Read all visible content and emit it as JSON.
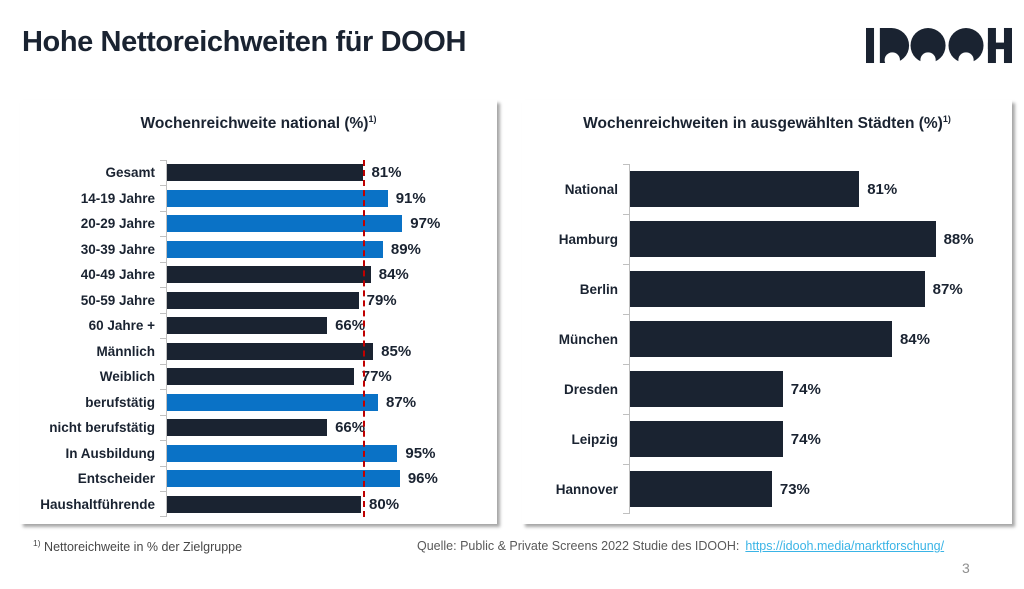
{
  "slide": {
    "title": "Hohe Nettoreichweiten für DOOH",
    "logo_text": "IDOOH",
    "page_number": "3",
    "footnote_marker": "1)",
    "footnote_text": "Nettoreichweite in % der Zielgruppe",
    "source_label": "Quelle: Public & Private Screens 2022 Studie des IDOOH:",
    "source_link": "https://idooh.media/marktforschung/"
  },
  "colors": {
    "navy": "#1a2331",
    "blue": "#0a72c6",
    "reference_red": "#c00000",
    "link_blue": "#3ab4e6",
    "axis_gray": "#c0c0c0"
  },
  "chart_data": [
    {
      "type": "bar",
      "orientation": "horizontal",
      "title": "Wochenreichweite national (%)",
      "title_superscript": "1)",
      "categories": [
        "Gesamt",
        "14-19 Jahre",
        "20-29 Jahre",
        "30-39 Jahre",
        "40-49 Jahre",
        "50-59 Jahre",
        "60 Jahre +",
        "Männlich",
        "Weiblich",
        "berufstätig",
        "nicht berufstätig",
        "In Ausbildung",
        "Entscheider",
        "Haushaltführende"
      ],
      "values": [
        81,
        91,
        97,
        89,
        84,
        79,
        66,
        85,
        77,
        87,
        66,
        95,
        96,
        80
      ],
      "bar_colors": [
        "#1a2331",
        "#0a72c6",
        "#0a72c6",
        "#0a72c6",
        "#1a2331",
        "#1a2331",
        "#1a2331",
        "#1a2331",
        "#1a2331",
        "#0a72c6",
        "#1a2331",
        "#0a72c6",
        "#0a72c6",
        "#1a2331"
      ],
      "value_suffix": "%",
      "xlim": [
        0,
        100
      ],
      "grid": false,
      "legend": false,
      "reference_line": {
        "value": 81,
        "color": "#c00000",
        "style": "dashed"
      }
    },
    {
      "type": "bar",
      "orientation": "horizontal",
      "title": "Wochenreichweiten in ausgewählten Städten (%)",
      "title_superscript": "1)",
      "categories": [
        "National",
        "Hamburg",
        "Berlin",
        "München",
        "Dresden",
        "Leipzig",
        "Hannover"
      ],
      "values": [
        81,
        88,
        87,
        84,
        74,
        74,
        73
      ],
      "bar_colors": [
        "#1a2331",
        "#1a2331",
        "#1a2331",
        "#1a2331",
        "#1a2331",
        "#1a2331",
        "#1a2331"
      ],
      "value_suffix": "%",
      "xlim": [
        60,
        95
      ],
      "grid": false,
      "legend": false
    }
  ]
}
